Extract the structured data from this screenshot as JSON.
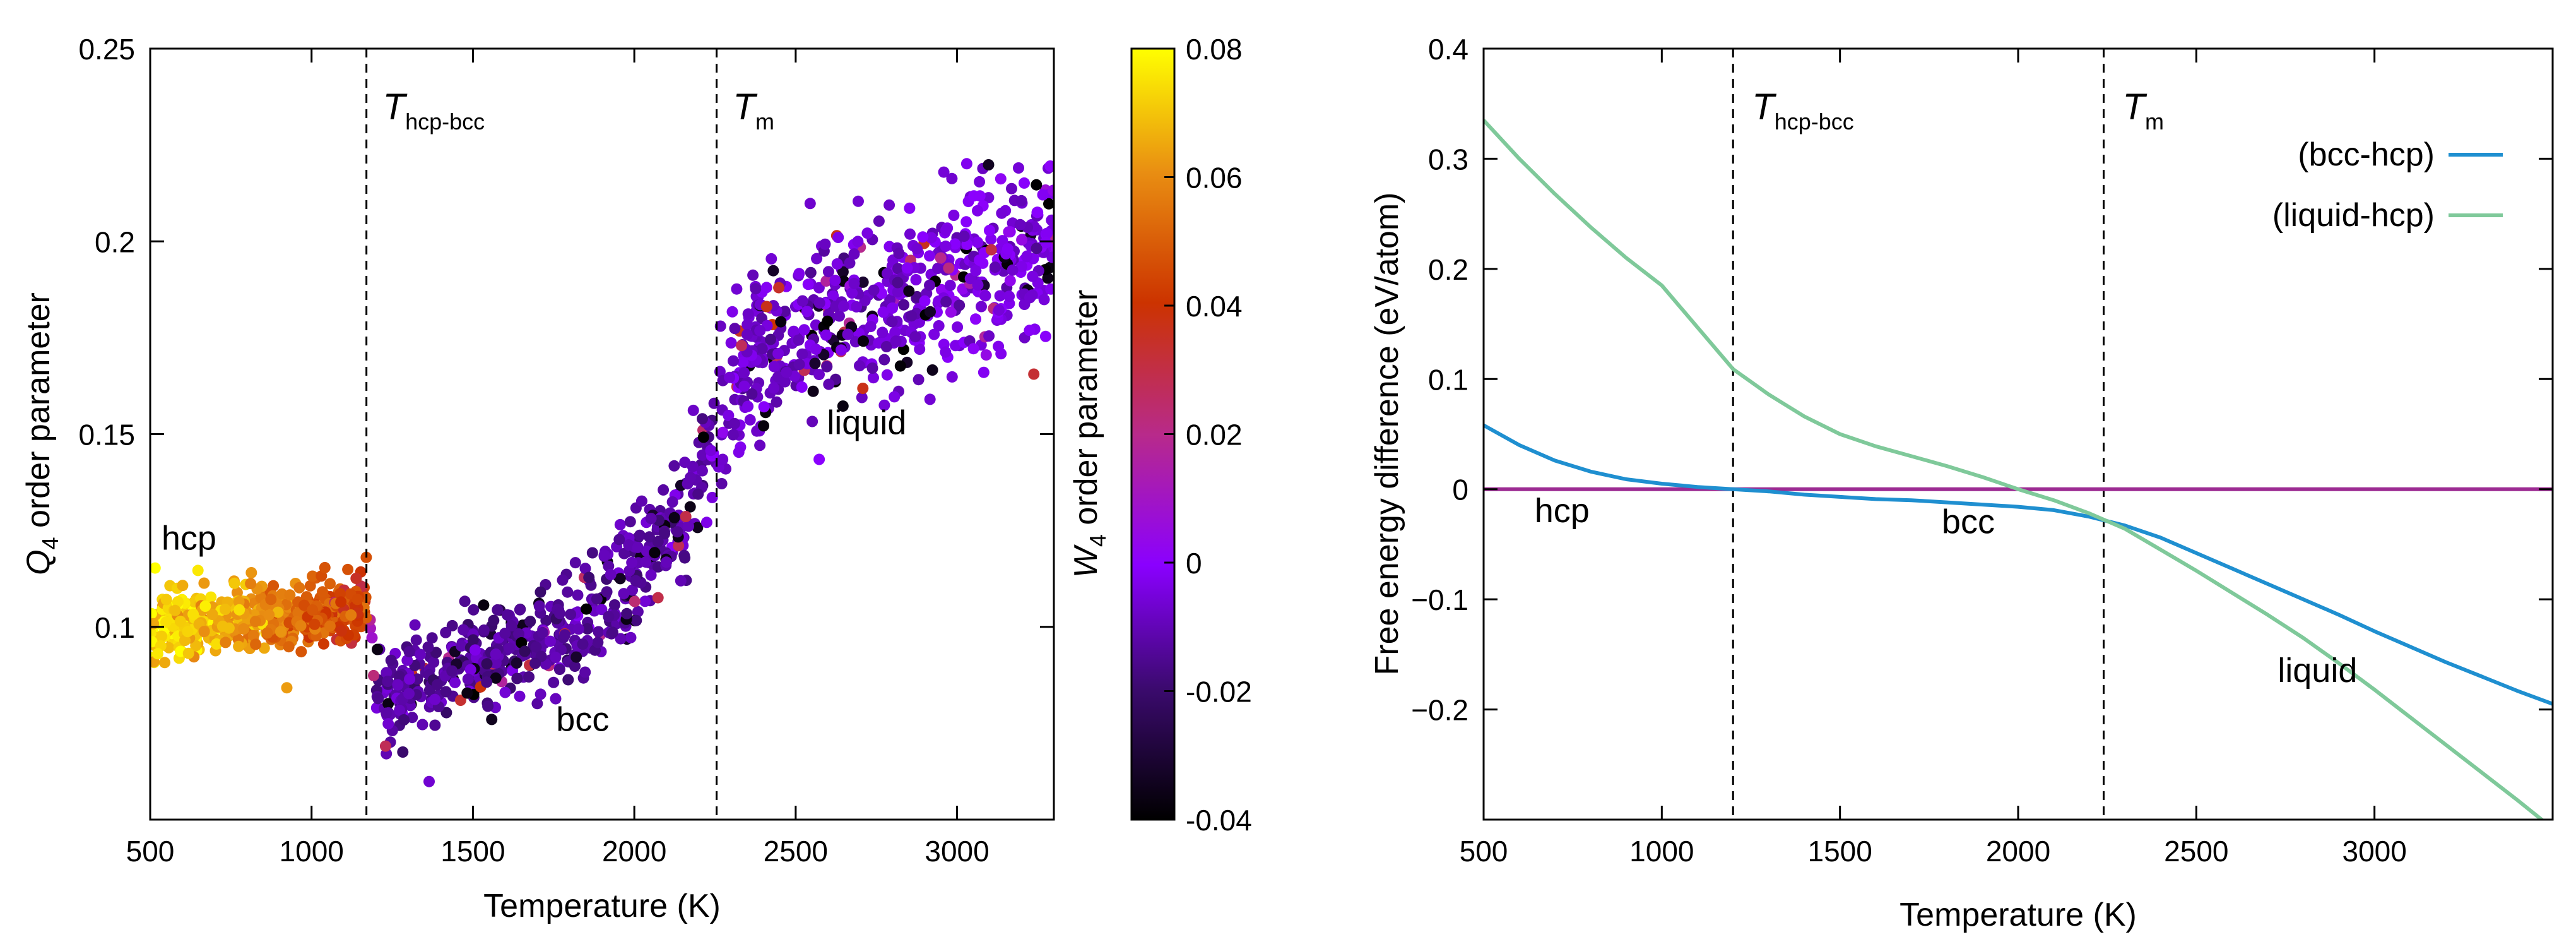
{
  "chart_data": [
    {
      "type": "scatter",
      "title": "",
      "xlabel": "Temperature (K)",
      "ylabel": "Q",
      "ylabel_sub": "4",
      "ylabel_rest": " order parameter",
      "xlim": [
        500,
        3300
      ],
      "ylim": [
        0.05,
        0.25
      ],
      "xticks": [
        500,
        1000,
        1500,
        2000,
        2500,
        3000
      ],
      "yticks": [
        0.1,
        0.15,
        0.2,
        0.25
      ],
      "xtick_labels": [
        "500",
        "1000",
        "1500",
        "2000",
        "2500",
        "3000"
      ],
      "ytick_labels": [
        "0.1",
        "0.15",
        "0.2",
        "0.25"
      ],
      "vlines": [
        {
          "x": 1170,
          "label_main": "T",
          "label_sub": "hcp-bcc"
        },
        {
          "x": 2255,
          "label_main": "T",
          "label_sub": "m"
        }
      ],
      "regions": [
        {
          "label": "hcp",
          "x": 620,
          "y": 0.12
        },
        {
          "label": "bcc",
          "x": 1840,
          "y": 0.073
        },
        {
          "label": "liquid",
          "x": 2720,
          "y": 0.15
        }
      ],
      "trend": {
        "x": [
          500,
          800,
          1100,
          1170,
          1200,
          1400,
          1600,
          1800,
          2000,
          2100,
          2200,
          2255,
          2300,
          2350,
          2400,
          2600,
          2800,
          3000,
          3200,
          3300
        ],
        "q4": [
          0.101,
          0.102,
          0.104,
          0.106,
          0.082,
          0.087,
          0.093,
          0.1,
          0.112,
          0.122,
          0.138,
          0.15,
          0.163,
          0.169,
          0.172,
          0.18,
          0.186,
          0.191,
          0.196,
          0.2
        ],
        "w4": [
          0.075,
          0.062,
          0.045,
          0.04,
          -0.012,
          -0.014,
          -0.014,
          -0.013,
          -0.012,
          -0.011,
          -0.011,
          -0.01,
          -0.009,
          -0.008,
          -0.008,
          -0.007,
          -0.006,
          -0.005,
          -0.004,
          -0.003
        ]
      },
      "n_points": 1700,
      "colorbar": {
        "label": "W",
        "label_sub": "4",
        "label_rest": " order parameter",
        "range": [
          -0.04,
          0.08
        ],
        "ticks": [
          -0.04,
          -0.02,
          0,
          0.02,
          0.04,
          0.06,
          0.08
        ],
        "tick_labels": [
          "-0.04",
          "-0.02",
          "0",
          "0.02",
          "0.04",
          "0.06",
          "0.08"
        ],
        "colormap": [
          "#000000",
          "#3b0a6e",
          "#8a00ff",
          "#b82a8a",
          "#cc3300",
          "#e98e12",
          "#ffff00"
        ]
      }
    },
    {
      "type": "line",
      "title": "",
      "xlabel": "Temperature (K)",
      "ylabel": "Free energy difference (eV/atom)",
      "xlim": [
        500,
        3500
      ],
      "ylim": [
        -0.3,
        0.4
      ],
      "xticks": [
        500,
        1000,
        1500,
        2000,
        2500,
        3000
      ],
      "yticks": [
        -0.2,
        -0.1,
        0,
        0.1,
        0.2,
        0.3,
        0.4
      ],
      "xtick_labels": [
        "500",
        "1000",
        "1500",
        "2000",
        "2500",
        "3000"
      ],
      "ytick_labels": [
        "−0.2",
        "−0.1",
        "0",
        "0.1",
        "0.2",
        "0.3",
        "0.4"
      ],
      "x": [
        500,
        600,
        700,
        800,
        900,
        1000,
        1100,
        1200,
        1300,
        1400,
        1500,
        1600,
        1700,
        1800,
        1900,
        2000,
        2100,
        2200,
        2300,
        2400,
        2500,
        2600,
        2700,
        2800,
        2900,
        3000,
        3100,
        3200,
        3300,
        3400,
        3500
      ],
      "series": [
        {
          "name": "(bcc-hcp)",
          "color": "#1f8fd0",
          "values": [
            0.058,
            0.04,
            0.026,
            0.016,
            0.009,
            0.005,
            0.002,
            0.0,
            -0.002,
            -0.005,
            -0.007,
            -0.009,
            -0.01,
            -0.012,
            -0.014,
            -0.016,
            -0.019,
            -0.025,
            -0.033,
            -0.044,
            -0.058,
            -0.072,
            -0.086,
            -0.1,
            -0.114,
            -0.129,
            -0.143,
            -0.157,
            -0.17,
            -0.183,
            -0.195
          ]
        },
        {
          "name": "(liquid-hcp)",
          "color": "#7fc99a",
          "values": [
            0.335,
            0.3,
            0.268,
            0.238,
            0.21,
            0.185,
            0.147,
            0.109,
            0.086,
            0.066,
            0.05,
            0.039,
            0.03,
            0.021,
            0.011,
            0.0,
            -0.01,
            -0.022,
            -0.036,
            -0.055,
            -0.074,
            -0.094,
            -0.114,
            -0.135,
            -0.158,
            -0.182,
            -0.207,
            -0.232,
            -0.257,
            -0.282,
            -0.308
          ]
        },
        {
          "name": "",
          "color": "#9c2a92",
          "values": [
            0,
            0,
            0,
            0,
            0,
            0,
            0,
            0,
            0,
            0,
            0,
            0,
            0,
            0,
            0,
            0,
            0,
            0,
            0,
            0,
            0,
            0,
            0,
            0,
            0,
            0,
            0,
            0,
            0,
            0,
            0
          ]
        }
      ],
      "vlines": [
        {
          "x": 1200,
          "label_main": "T",
          "label_sub": "hcp-bcc"
        },
        {
          "x": 2240,
          "label_main": "T",
          "label_sub": "m"
        }
      ],
      "regions": [
        {
          "label": "hcp",
          "x": 720,
          "y": -0.03
        },
        {
          "label": "bcc",
          "x": 1860,
          "y": -0.04
        },
        {
          "label": "liquid",
          "x": 2840,
          "y": -0.175
        }
      ],
      "legend": {
        "position": "top-right",
        "entries": [
          "(bcc-hcp)",
          "(liquid-hcp)"
        ]
      }
    }
  ]
}
